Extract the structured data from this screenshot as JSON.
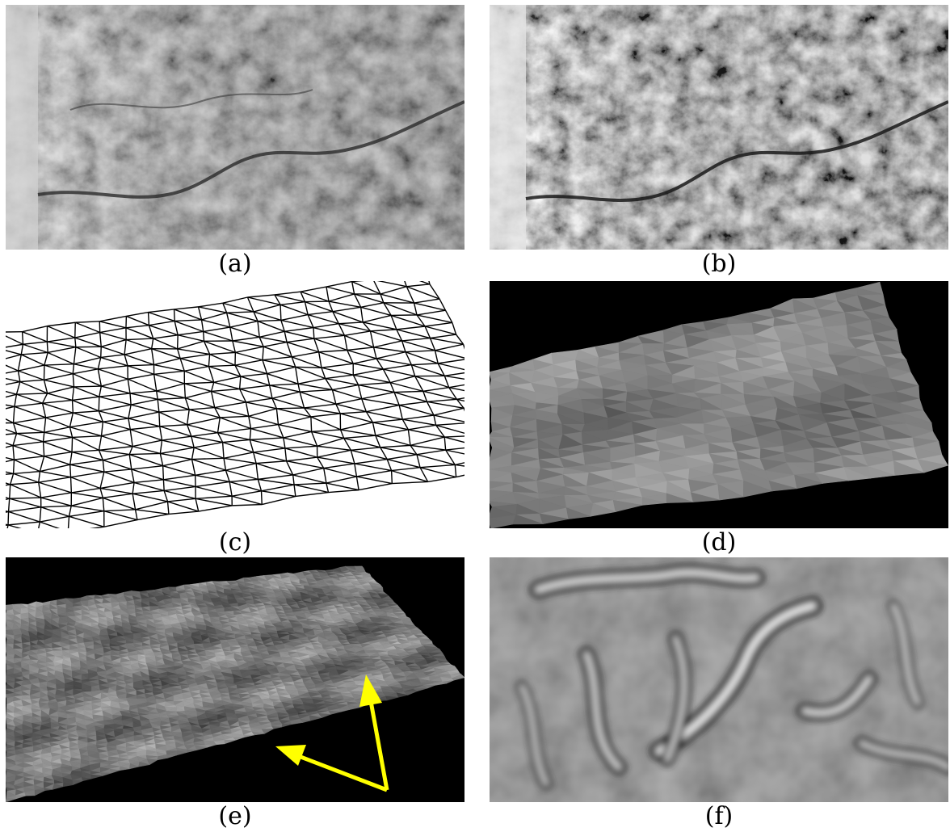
{
  "figure": {
    "panels": [
      {
        "id": "a",
        "label": "(a)",
        "content": "grayscale aerial terrain image"
      },
      {
        "id": "b",
        "label": "(b)",
        "content": "contrast-enhanced grayscale terrain image"
      },
      {
        "id": "c",
        "label": "(c)",
        "content": "triangulated wireframe surface mesh"
      },
      {
        "id": "d",
        "label": "(d)",
        "content": "coarse shaded triangulated surface"
      },
      {
        "id": "e",
        "label": "(e)",
        "content": "fine shaded 3D terrain with arrows",
        "arrow_color": "#ffff00"
      },
      {
        "id": "f",
        "label": "(f)",
        "content": "blurred ridge / valley filtered image"
      }
    ]
  }
}
